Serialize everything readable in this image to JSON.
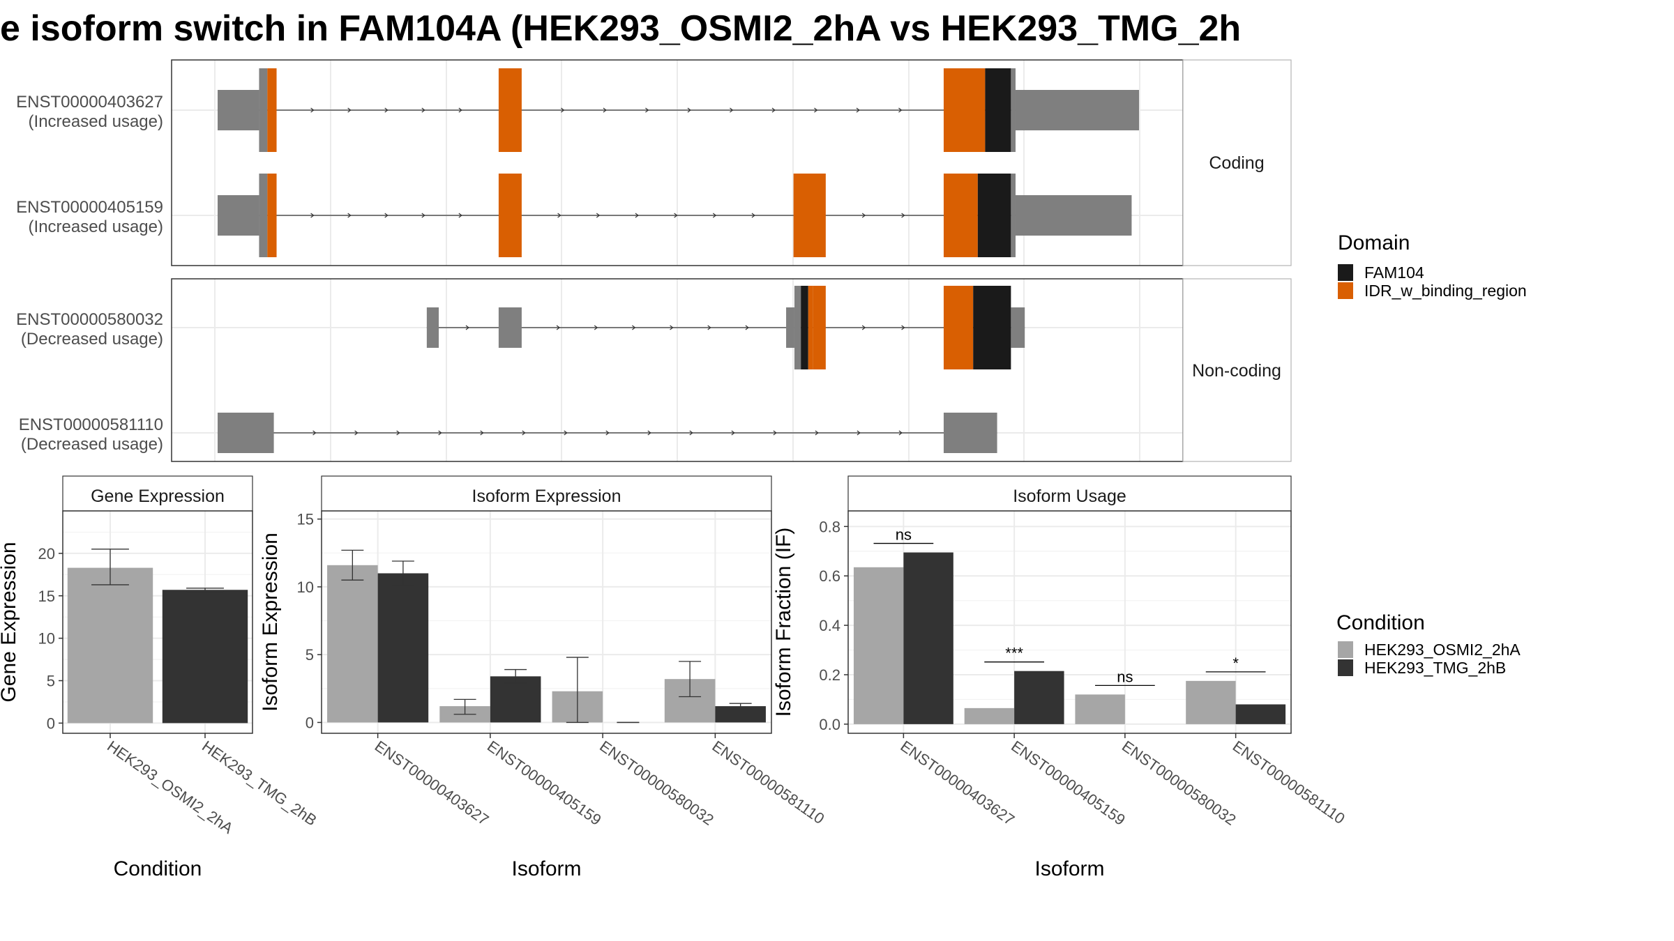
{
  "title": "e isoform switch in FAM104A (HEK293_OSMI2_2hA vs HEK293_TMG_2h",
  "colors": {
    "exon": "#7f7f7f",
    "domain_fam104": "#1a1a1a",
    "domain_idr": "#d95f02",
    "cond_a": "#a6a6a6",
    "cond_b": "#333333"
  },
  "transcript_panels": [
    {
      "strip": "Coding",
      "transcripts": [
        {
          "id": "ENST00000403627",
          "usage": "(Increased usage)",
          "coding": true,
          "segments": [
            {
              "s": 0.0,
              "e": 4.5,
              "type": "utr"
            },
            {
              "s": 4.5,
              "e": 5.4,
              "type": "cds"
            },
            {
              "s": 5.4,
              "e": 6.4,
              "type": "idr"
            },
            {
              "s": 30.5,
              "e": 33.0,
              "type": "idr"
            },
            {
              "s": 78.8,
              "e": 83.3,
              "type": "idr"
            },
            {
              "s": 83.3,
              "e": 86.1,
              "type": "fam104"
            },
            {
              "s": 86.1,
              "e": 86.6,
              "type": "cds"
            },
            {
              "s": 86.6,
              "e": 100.0,
              "type": "utr"
            }
          ]
        },
        {
          "id": "ENST00000405159",
          "usage": "(Increased usage)",
          "coding": true,
          "segments": [
            {
              "s": 0.0,
              "e": 4.5,
              "type": "utr"
            },
            {
              "s": 4.5,
              "e": 5.4,
              "type": "cds"
            },
            {
              "s": 5.4,
              "e": 6.4,
              "type": "idr"
            },
            {
              "s": 30.5,
              "e": 33.0,
              "type": "idr"
            },
            {
              "s": 62.5,
              "e": 66.0,
              "type": "idr"
            },
            {
              "s": 78.8,
              "e": 82.5,
              "type": "idr"
            },
            {
              "s": 82.5,
              "e": 86.1,
              "type": "fam104"
            },
            {
              "s": 86.1,
              "e": 86.6,
              "type": "cds"
            },
            {
              "s": 86.6,
              "e": 99.2,
              "type": "utr"
            }
          ]
        }
      ]
    },
    {
      "strip": "Non-coding",
      "transcripts": [
        {
          "id": "ENST00000580032",
          "usage": "(Decreased usage)",
          "coding": true,
          "segments": [
            {
              "s": 22.7,
              "e": 24.0,
              "type": "utr"
            },
            {
              "s": 30.5,
              "e": 33.0,
              "type": "utr"
            },
            {
              "s": 61.7,
              "e": 62.6,
              "type": "utr"
            },
            {
              "s": 62.6,
              "e": 63.3,
              "type": "cds"
            },
            {
              "s": 63.3,
              "e": 64.1,
              "type": "fam104"
            },
            {
              "s": 64.1,
              "e": 64.6,
              "type": "idr"
            },
            {
              "s": 64.6,
              "e": 66.0,
              "type": "idr"
            },
            {
              "s": 78.8,
              "e": 82.0,
              "type": "idr"
            },
            {
              "s": 82.0,
              "e": 86.1,
              "type": "fam104"
            },
            {
              "s": 86.1,
              "e": 87.6,
              "type": "utr"
            }
          ]
        },
        {
          "id": "ENST00000581110",
          "usage": "(Decreased usage)",
          "coding": false,
          "segments": [
            {
              "s": 0.0,
              "e": 6.1,
              "type": "utr"
            },
            {
              "s": 78.8,
              "e": 84.6,
              "type": "utr"
            }
          ]
        }
      ]
    }
  ],
  "legend_domain": {
    "title": "Domain",
    "items": [
      {
        "label": "FAM104",
        "color": "#1a1a1a"
      },
      {
        "label": "IDR_w_binding_region",
        "color": "#d95f02"
      }
    ]
  },
  "legend_condition": {
    "title": "Condition",
    "items": [
      {
        "label": "HEK293_OSMI2_2hA",
        "color": "#a6a6a6"
      },
      {
        "label": "HEK293_TMG_2hB",
        "color": "#333333"
      }
    ]
  },
  "chart_data": [
    {
      "type": "bar",
      "title": "Gene Expression",
      "xlabel": "Condition",
      "ylabel": "Gene Expression",
      "categories": [
        "HEK293_OSMI2_2hA",
        "HEK293_TMG_2hB"
      ],
      "values": [
        18.3,
        15.7
      ],
      "error_low": [
        16.3,
        15.5
      ],
      "error_high": [
        20.5,
        15.9
      ],
      "ylim": [
        -1.2,
        25.0
      ],
      "yticks": [
        0,
        5,
        10,
        15,
        20
      ]
    },
    {
      "type": "bar",
      "title": "Isoform Expression",
      "xlabel": "Isoform",
      "ylabel": "Isoform Expression",
      "categories": [
        "ENST00000403627",
        "ENST00000405159",
        "ENST00000580032",
        "ENST00000581110"
      ],
      "series": [
        {
          "name": "HEK293_OSMI2_2hA",
          "values": [
            11.6,
            1.2,
            2.3,
            3.2
          ],
          "error_low": [
            10.5,
            0.6,
            0.0,
            1.9
          ],
          "error_high": [
            12.7,
            1.7,
            4.8,
            4.5
          ]
        },
        {
          "name": "HEK293_TMG_2hB",
          "values": [
            11.0,
            3.4,
            0.0,
            1.2
          ],
          "error_low": [
            10.1,
            2.9,
            0.0,
            1.0
          ],
          "error_high": [
            11.9,
            3.9,
            0.0,
            1.4
          ]
        }
      ],
      "ylim": [
        -0.8,
        15.6
      ],
      "yticks": [
        0,
        5,
        10,
        15
      ]
    },
    {
      "type": "bar",
      "title": "Isoform Usage",
      "xlabel": "Isoform",
      "ylabel": "Isoform Fraction (IF)",
      "categories": [
        "ENST00000403627",
        "ENST00000405159",
        "ENST00000580032",
        "ENST00000581110"
      ],
      "series": [
        {
          "name": "HEK293_OSMI2_2hA",
          "values": [
            0.635,
            0.065,
            0.12,
            0.175
          ]
        },
        {
          "name": "HEK293_TMG_2hB",
          "values": [
            0.695,
            0.215,
            0.0,
            0.08
          ]
        }
      ],
      "significance": [
        "ns",
        "***",
        "ns",
        "*"
      ],
      "ylim": [
        -0.037,
        0.863
      ],
      "yticks": [
        0.0,
        0.2,
        0.4,
        0.6,
        0.8
      ],
      "ytick_labels": [
        "0.0",
        "0.2",
        "0.4",
        "0.6",
        "0.8"
      ]
    }
  ]
}
